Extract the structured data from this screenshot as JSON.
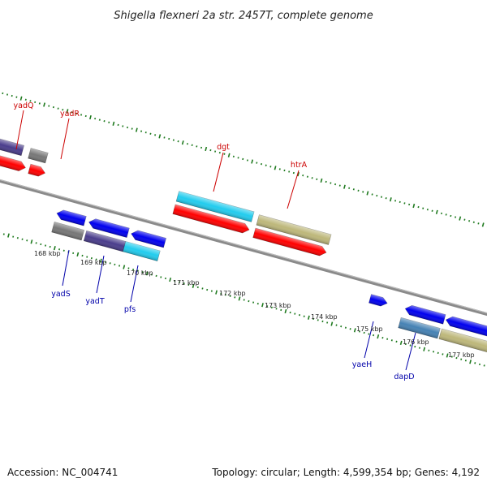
{
  "title": "Shigella flexneri 2a str. 2457T, complete genome",
  "footer": {
    "accession": "Accession: NC_004741",
    "summary": "Topology: circular; Length: 4,599,354 bp; Genes: 4,192"
  },
  "colors": {
    "backbone": "#888888",
    "tick": "#1f7a1f",
    "label_forward": "#cc0000",
    "label_reverse": "#0000aa",
    "feature_red": "#ff0000",
    "feature_blue": "#0000ee",
    "feature_cyan": "#22ccee",
    "feature_gray": "#777777",
    "feature_purple": "#4a3d8c",
    "feature_khaki": "#bdb77a",
    "feature_steel": "#4682b4"
  },
  "tick_labels": [
    {
      "kbp": 168,
      "text": "168 kbp"
    },
    {
      "kbp": 169,
      "text": "169 kbp"
    },
    {
      "kbp": 170,
      "text": "170 kbp"
    },
    {
      "kbp": 171,
      "text": "171 kbp"
    },
    {
      "kbp": 172,
      "text": "172 kbp"
    },
    {
      "kbp": 173,
      "text": "173 kbp"
    },
    {
      "kbp": 174,
      "text": "174 kbp"
    },
    {
      "kbp": 175,
      "text": "175 kbp"
    },
    {
      "kbp": 176,
      "text": "176 kbp"
    },
    {
      "kbp": 177,
      "text": "177 kbp"
    }
  ],
  "gene_labels": [
    {
      "name": "yadQ",
      "strand": "forward"
    },
    {
      "name": "yadR",
      "strand": "forward"
    },
    {
      "name": "dgt",
      "strand": "forward"
    },
    {
      "name": "htrA",
      "strand": "forward"
    },
    {
      "name": "yadS",
      "strand": "reverse"
    },
    {
      "name": "yadT",
      "strand": "reverse"
    },
    {
      "name": "pfs",
      "strand": "reverse"
    },
    {
      "name": "yaeH",
      "strand": "reverse"
    },
    {
      "name": "dapD",
      "strand": "reverse"
    }
  ]
}
